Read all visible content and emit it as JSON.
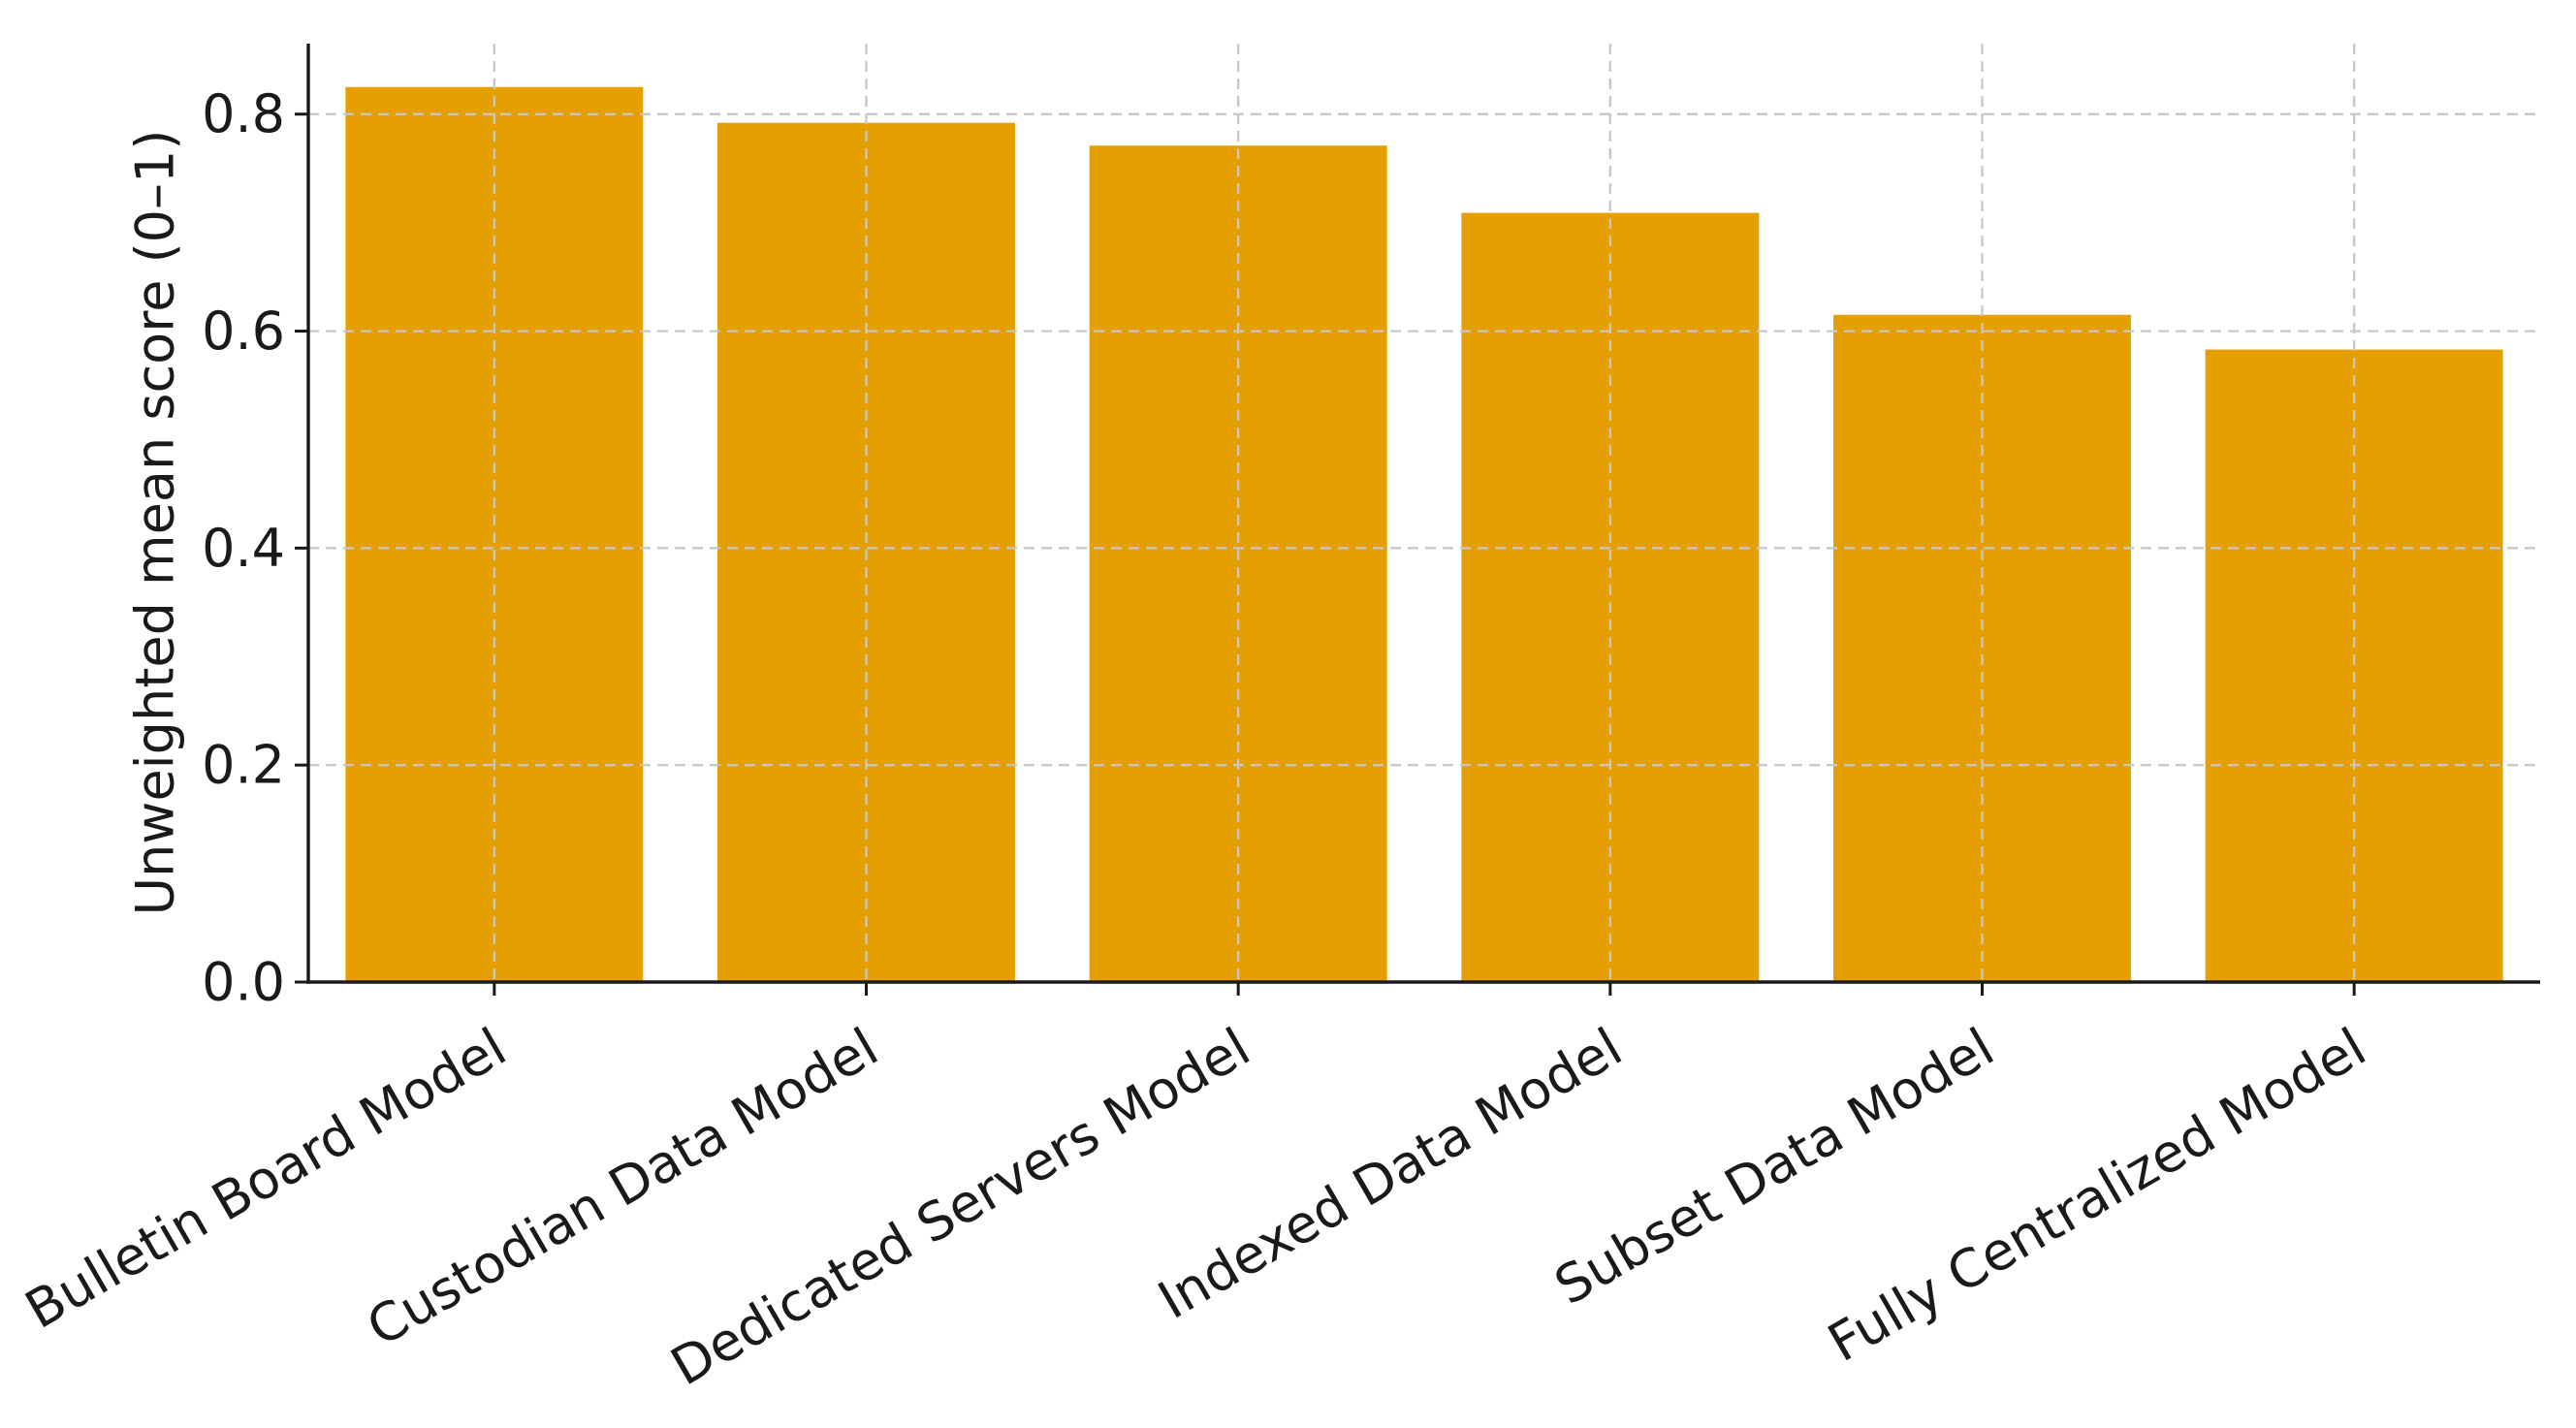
{
  "chart_data": {
    "type": "bar",
    "title": "",
    "xlabel": "",
    "ylabel": "Unweighted mean score (0–1)",
    "categories": [
      "Bulletin Board Model",
      "Custodian Data Model",
      "Dedicated Servers Model",
      "Indexed Data Model",
      "Subset Data Model",
      "Fully Centralized Model"
    ],
    "values": [
      0.825,
      0.792,
      0.771,
      0.709,
      0.615,
      0.583
    ],
    "ylim": [
      0,
      0.865
    ],
    "yticks": [
      0.0,
      0.2,
      0.4,
      0.6,
      0.8
    ],
    "ytick_labels": [
      "0.0",
      "0.2",
      "0.4",
      "0.6",
      "0.8"
    ],
    "grid": true,
    "legend": "none",
    "colors": {
      "bar": "#E69F00",
      "grid": "#c8c8c8",
      "axis": "#1a1a1a"
    }
  }
}
